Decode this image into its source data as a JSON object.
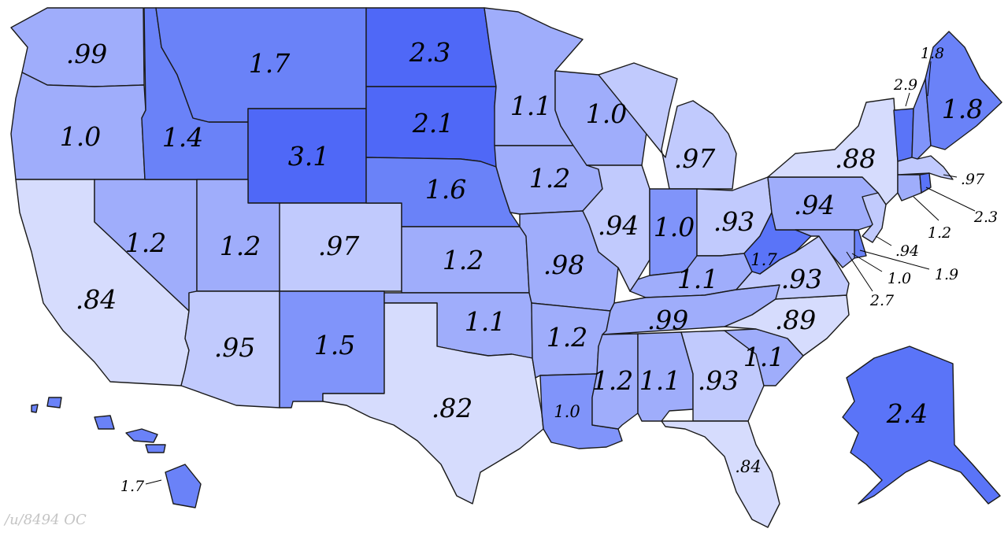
{
  "colors": {
    "c1": "#d6dcfd",
    "c2": "#c1cafd",
    "c3": "#9fadfb",
    "c4": "#8094fa",
    "c5": "#6a82f8",
    "c6": "#5a74f8",
    "c7": "#4f68f7"
  },
  "states": {
    "WA": ".99",
    "OR": "1.0",
    "CA": ".84",
    "NV": "1.2",
    "ID": "1.4",
    "MT": "1.7",
    "WY": "3.1",
    "UT": "1.2",
    "AZ": ".95",
    "CO": ".97",
    "NM": "1.5",
    "ND": "2.3",
    "SD": "2.1",
    "NE": "1.6",
    "KS": "1.2",
    "OK": "1.1",
    "TX": ".82",
    "MN": "1.1",
    "IA": "1.2",
    "MO": ".98",
    "AR": "1.2",
    "LA": "1.0",
    "WI": "1.0",
    "IL": ".94",
    "MI": ".97",
    "IN": "1.0",
    "OH": ".93",
    "KY": "1.1",
    "TN": ".99",
    "MS": "1.2",
    "AL": "1.1",
    "GA": ".93",
    "FL": ".84",
    "SC": "1.1",
    "NC": ".89",
    "VA": ".93",
    "WV": "1.7",
    "PA": ".94",
    "NY": ".88",
    "VT": "2.9",
    "NH": "1.8",
    "ME": "1.8",
    "MA": ".97",
    "RI": "2.3",
    "CT": "1.2",
    "NJ": ".94",
    "DE": "1.9",
    "MD": "1.0",
    "DC": "2.7",
    "AK": "2.4",
    "HI": "1.7"
  },
  "credit": "/u/8494 OC"
}
